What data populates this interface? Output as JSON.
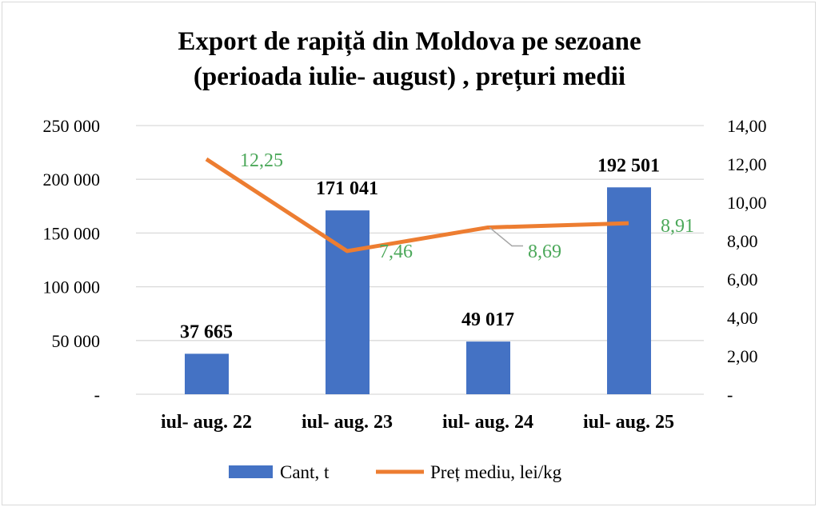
{
  "chart_data": {
    "type": "bar+line",
    "title": [
      "Export de rapiță din  Moldova pe sezoane",
      "(perioada iulie- august) , prețuri medii"
    ],
    "categories": [
      "iul- aug. 22",
      "iul- aug. 23",
      "iul- aug. 24",
      "iul- aug. 25"
    ],
    "series": [
      {
        "name": "Cant, t",
        "type": "bar",
        "axis": "left",
        "color": "#4472C4",
        "values": [
          37665,
          171041,
          49017,
          192501
        ],
        "labels": [
          "37 665",
          "171 041",
          "49 017",
          "192 501"
        ]
      },
      {
        "name": "Preț mediu, lei/kg",
        "type": "line",
        "axis": "right",
        "color": "#ED7D31",
        "values": [
          12.25,
          7.46,
          8.69,
          8.91
        ],
        "labels": [
          "12,25",
          "7,46",
          "8,69",
          "8,91"
        ],
        "label_color": "#4CA85A"
      }
    ],
    "y_left": {
      "range": [
        0,
        250000
      ],
      "ticks": [
        "-",
        "50 000",
        "100 000",
        "150 000",
        "200 000",
        "250 000"
      ]
    },
    "y_right": {
      "range": [
        0,
        14
      ],
      "ticks": [
        "-",
        "2,00",
        "4,00",
        "6,00",
        "8,00",
        "10,00",
        "12,00",
        "14,00"
      ]
    },
    "grid": true,
    "legend": "bottom"
  }
}
